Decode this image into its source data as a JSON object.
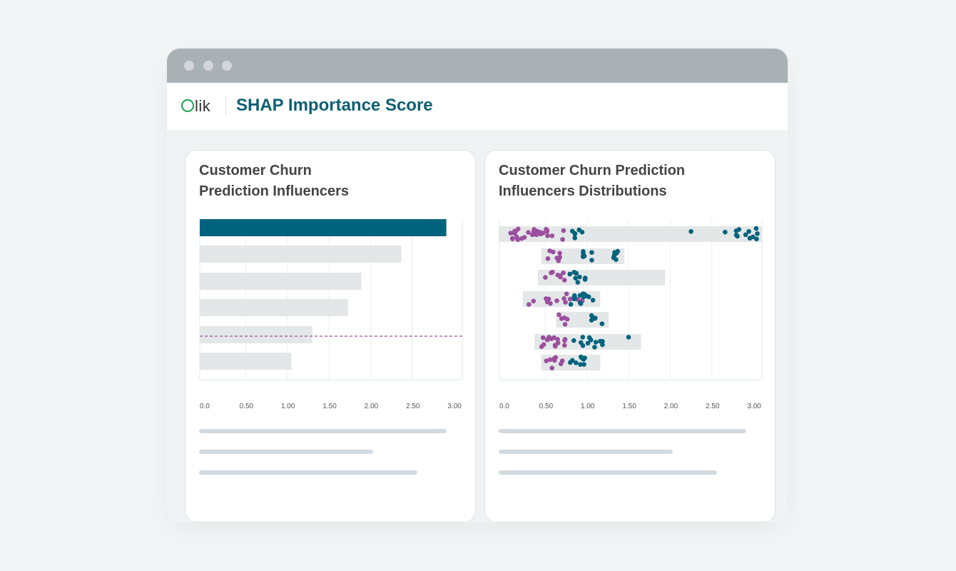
{
  "header": {
    "logo": "Qlik",
    "title": "SHAP Importance Score"
  },
  "colors": {
    "accent": "#00637d",
    "purple": "#9b4f9e",
    "bar": "#e4e7e8"
  },
  "chart_data": [
    {
      "type": "bar",
      "title": "Customer Churn Prediction Influencers",
      "title_lines": [
        "Customer Churn",
        "Prediction Influencers"
      ],
      "orientation": "horizontal",
      "values": [
        2.91,
        2.37,
        1.89,
        1.73,
        1.3,
        1.05
      ],
      "highlight_index": 0,
      "reference_line": "dashed between bars 5 and 6",
      "xlim": [
        0,
        3
      ],
      "xticks": [
        "0.0",
        "0.50",
        "1.00",
        "1.50",
        "2.00",
        "2.50",
        "3.00"
      ],
      "grid": true
    },
    {
      "type": "scatter",
      "title": "Customer Churn Prediction Influencers Distributions",
      "title_lines": [
        "Customer Churn Prediction",
        "Influencers Distributions"
      ],
      "xlim": [
        0,
        3
      ],
      "xticks": [
        "0.0",
        "0.50",
        "1.00",
        "1.50",
        "2.00",
        "2.50",
        "3.00"
      ],
      "grid": true,
      "rows": [
        {
          "range": [
            -0.06,
            3.1
          ],
          "purple": [
            0.05,
            0.75,
            30
          ],
          "teal": [
            [
              0.78,
              0.95,
              6
            ],
            [
              2.25,
              2.25,
              1
            ],
            [
              2.65,
              3.05,
              12
            ]
          ]
        },
        {
          "range": [
            0.45,
            1.45
          ],
          "purple": [
            0.5,
            0.7,
            7
          ],
          "teal": [
            [
              0.95,
              1.08,
              6
            ],
            [
              1.32,
              1.42,
              6
            ]
          ]
        },
        {
          "range": [
            0.41,
            1.94
          ],
          "purple": [
            0.47,
            0.75,
            8
          ],
          "teal": [
            [
              0.78,
              1.0,
              8
            ]
          ]
        },
        {
          "range": [
            0.23,
            1.16
          ],
          "purple": [
            0.25,
            0.95,
            16
          ],
          "teal": [
            [
              0.8,
              1.1,
              13
            ]
          ]
        },
        {
          "range": [
            0.63,
            1.26
          ],
          "purple": [
            0.66,
            0.8,
            5
          ],
          "teal": [
            [
              1.05,
              1.23,
              6
            ]
          ]
        },
        {
          "range": [
            0.37,
            1.65
          ],
          "purple": [
            0.4,
            0.75,
            14
          ],
          "teal": [
            [
              0.78,
              1.22,
              12
            ],
            [
              1.5,
              1.5,
              1
            ]
          ]
        },
        {
          "range": [
            0.45,
            1.16
          ],
          "purple": [
            0.5,
            0.73,
            8
          ],
          "teal": [
            [
              0.8,
              1.08,
              9
            ]
          ]
        }
      ]
    }
  ]
}
